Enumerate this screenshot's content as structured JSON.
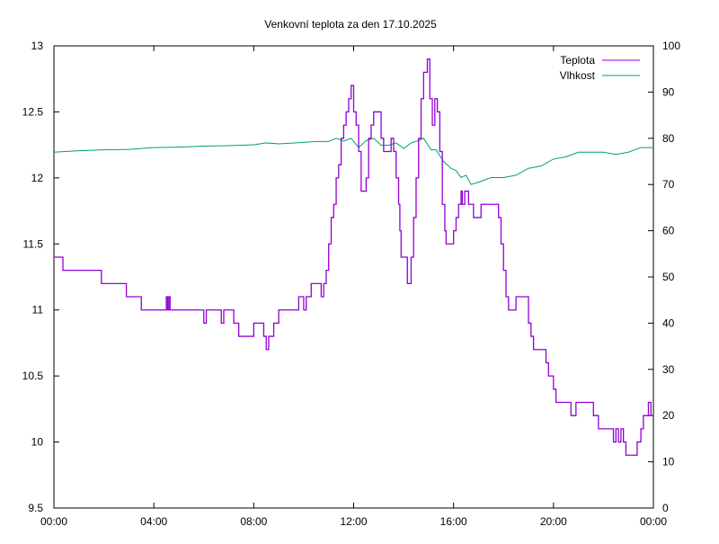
{
  "chart_data": {
    "type": "line",
    "title": "Venkovní teplota za den 17.10.2025",
    "xlabel": "",
    "ylabel": "",
    "y2label": "",
    "xlim": [
      0,
      24
    ],
    "ylim": [
      9.5,
      13
    ],
    "y2lim": [
      0,
      100
    ],
    "x_ticks": [
      "00:00",
      "04:00",
      "08:00",
      "12:00",
      "16:00",
      "20:00",
      "00:00"
    ],
    "y_ticks": [
      "9.5",
      "10",
      "10.5",
      "11",
      "11.5",
      "12",
      "12.5",
      "13"
    ],
    "y2_ticks": [
      "0",
      "10",
      "20",
      "30",
      "40",
      "50",
      "60",
      "70",
      "80",
      "90",
      "100"
    ],
    "grid": false,
    "legend_position": "top-right",
    "colors": {
      "teplota": "#9400d3",
      "vlhkost": "#009e73"
    },
    "series": [
      {
        "name": "Teplota",
        "axis": "left",
        "x": [
          0,
          0.36,
          1.9,
          2.9,
          3.5,
          4.5,
          4.55,
          4.6,
          4.65,
          6.0,
          6.1,
          6.7,
          6.8,
          6.9,
          7.2,
          7.4,
          8.0,
          8.4,
          8.5,
          8.6,
          8.8,
          9.0,
          9.8,
          10.0,
          10.1,
          10.3,
          10.7,
          10.8,
          10.9,
          11.0,
          11.1,
          11.2,
          11.3,
          11.4,
          11.5,
          11.6,
          11.7,
          11.8,
          11.9,
          12.0,
          12.1,
          12.2,
          12.3,
          12.5,
          12.6,
          12.7,
          12.8,
          13.1,
          13.2,
          13.3,
          13.5,
          13.6,
          13.7,
          13.8,
          13.85,
          13.9,
          14.15,
          14.3,
          14.4,
          14.5,
          14.6,
          14.7,
          14.8,
          14.95,
          15.05,
          15.15,
          15.25,
          15.35,
          15.45,
          15.55,
          15.65,
          15.7,
          15.9,
          16.0,
          16.1,
          16.2,
          16.3,
          16.35,
          16.45,
          16.5,
          16.6,
          16.8,
          17.1,
          17.7,
          17.8,
          17.9,
          18.0,
          18.1,
          18.2,
          18.5,
          18.6,
          19.0,
          19.1,
          19.2,
          19.3,
          19.7,
          19.8,
          20.0,
          20.1,
          20.2,
          20.7,
          20.9,
          21.6,
          21.8,
          22.4,
          22.5,
          22.6,
          22.7,
          22.8,
          22.9,
          23.25,
          23.35,
          23.5,
          23.6,
          23.8,
          23.9,
          24
        ],
        "values": [
          11.4,
          11.3,
          11.2,
          11.1,
          11.0,
          11.1,
          11.0,
          11.1,
          11.0,
          10.9,
          11.0,
          10.9,
          11.0,
          11.0,
          10.9,
          10.8,
          10.9,
          10.8,
          10.7,
          10.8,
          10.9,
          11.0,
          11.1,
          11.0,
          11.1,
          11.2,
          11.1,
          11.2,
          11.3,
          11.5,
          11.7,
          11.8,
          12.0,
          12.1,
          12.3,
          12.4,
          12.5,
          12.6,
          12.7,
          12.5,
          12.4,
          12.2,
          11.9,
          12.0,
          12.3,
          12.4,
          12.5,
          12.3,
          12.2,
          12.2,
          12.3,
          12.2,
          12.0,
          11.8,
          11.6,
          11.4,
          11.2,
          11.4,
          11.7,
          12.0,
          12.3,
          12.6,
          12.8,
          12.9,
          12.6,
          12.4,
          12.6,
          12.5,
          12.2,
          11.8,
          11.6,
          11.5,
          11.5,
          11.6,
          11.7,
          11.8,
          11.9,
          11.8,
          11.9,
          11.9,
          11.8,
          11.7,
          11.8,
          11.8,
          11.7,
          11.5,
          11.3,
          11.1,
          11.0,
          11.1,
          11.1,
          10.9,
          10.8,
          10.7,
          10.7,
          10.6,
          10.5,
          10.4,
          10.3,
          10.3,
          10.2,
          10.3,
          10.2,
          10.1,
          10.0,
          10.1,
          10.0,
          10.1,
          10.0,
          9.9,
          9.9,
          10.0,
          10.1,
          10.2,
          10.3,
          10.2,
          10.2
        ]
      },
      {
        "name": "Vlhkost",
        "axis": "right",
        "x": [
          0,
          1,
          2,
          3,
          4,
          5,
          6,
          7,
          8,
          8.5,
          9,
          10,
          10.5,
          11,
          11.3,
          11.6,
          11.9,
          12.2,
          12.5,
          12.8,
          13.1,
          13.4,
          13.7,
          14.0,
          14.3,
          14.6,
          14.8,
          15.1,
          15.3,
          15.6,
          15.9,
          16.1,
          16.3,
          16.5,
          16.7,
          17.0,
          17.5,
          18.0,
          18.5,
          19.0,
          19.5,
          20.0,
          20.5,
          21.0,
          21.5,
          22.0,
          22.5,
          23.0,
          23.5,
          24
        ],
        "values": [
          77,
          77.3,
          77.5,
          77.6,
          78,
          78.1,
          78.3,
          78.4,
          78.6,
          79,
          78.8,
          79.1,
          79.3,
          79.3,
          80,
          79.4,
          80,
          78,
          79.5,
          80,
          78.5,
          78.5,
          79,
          77.8,
          79,
          79.5,
          80,
          77.5,
          77.5,
          75,
          73.5,
          73,
          71.5,
          72,
          70,
          70.5,
          71.5,
          71.5,
          72,
          73.5,
          74,
          75.5,
          76,
          77,
          77,
          77,
          76.5,
          77,
          78,
          78
        ]
      }
    ]
  }
}
